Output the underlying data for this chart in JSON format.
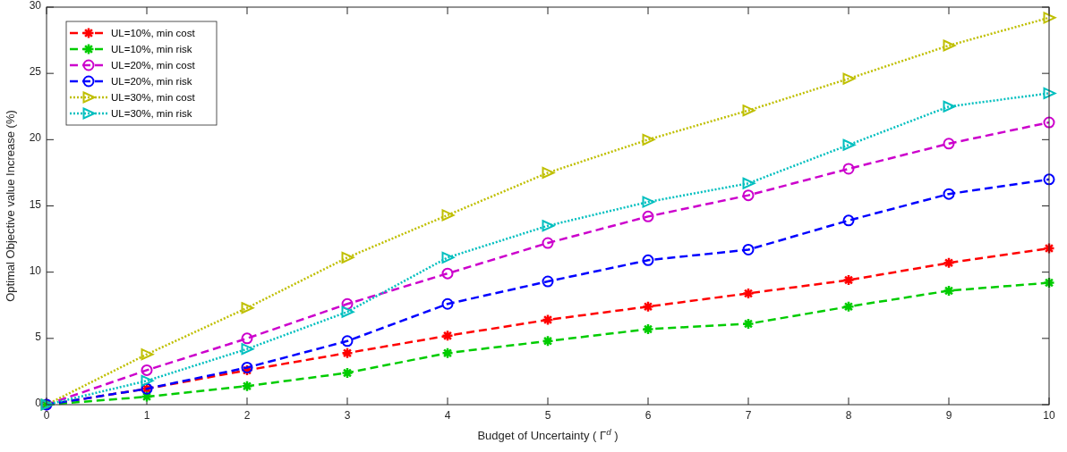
{
  "chart_data": {
    "type": "line",
    "xlabel": "Budget of Uncertainty ( Γ$^{d}$ )",
    "ylabel": "Optimal Objective value Increase (%)",
    "x": [
      0,
      1,
      2,
      3,
      4,
      5,
      6,
      7,
      8,
      9,
      10
    ],
    "xlim": [
      0,
      10
    ],
    "xticks": [
      0,
      1,
      2,
      3,
      4,
      5,
      6,
      7,
      8,
      9,
      10
    ],
    "ylim": [
      0,
      30
    ],
    "yticks": [
      0,
      5,
      10,
      15,
      20,
      25,
      30
    ],
    "grid": false,
    "legend": "top left",
    "series": [
      {
        "name": "UL=10%, min cost",
        "color": "#ff0000",
        "marker": "cross",
        "line_style": "dashed",
        "values": [
          0,
          1.2,
          2.6,
          3.9,
          5.2,
          6.4,
          7.4,
          8.4,
          9.4,
          10.7,
          11.8
        ]
      },
      {
        "name": "UL=10%, min risk",
        "color": "#00cc00",
        "marker": "cross",
        "line_style": "dashed",
        "values": [
          0,
          0.6,
          1.4,
          2.4,
          3.9,
          4.8,
          5.7,
          6.1,
          7.4,
          8.6,
          9.2
        ]
      },
      {
        "name": "UL=20%, min cost",
        "color": "#cc00cc",
        "marker": "circle",
        "line_style": "dashed",
        "values": [
          0,
          2.6,
          5.0,
          7.6,
          9.9,
          12.2,
          14.2,
          15.8,
          17.8,
          19.7,
          21.3
        ]
      },
      {
        "name": "UL=20%, min risk",
        "color": "#0000ff",
        "marker": "circle",
        "line_style": "dashed",
        "values": [
          0,
          1.2,
          2.8,
          4.8,
          7.6,
          9.3,
          10.9,
          11.7,
          13.9,
          15.9,
          17.0
        ]
      },
      {
        "name": "UL=30%, min cost",
        "color": "#bfbf00",
        "marker": "triangle",
        "line_style": "dotted",
        "values": [
          0,
          3.8,
          7.3,
          11.1,
          14.3,
          17.5,
          20.0,
          22.2,
          24.6,
          27.1,
          29.2
        ]
      },
      {
        "name": "UL=30%, min risk",
        "color": "#00bfbf",
        "marker": "triangle",
        "line_style": "dotted",
        "values": [
          0,
          1.8,
          4.2,
          7.0,
          11.1,
          13.5,
          15.3,
          16.7,
          19.6,
          22.5,
          23.5
        ]
      }
    ]
  }
}
